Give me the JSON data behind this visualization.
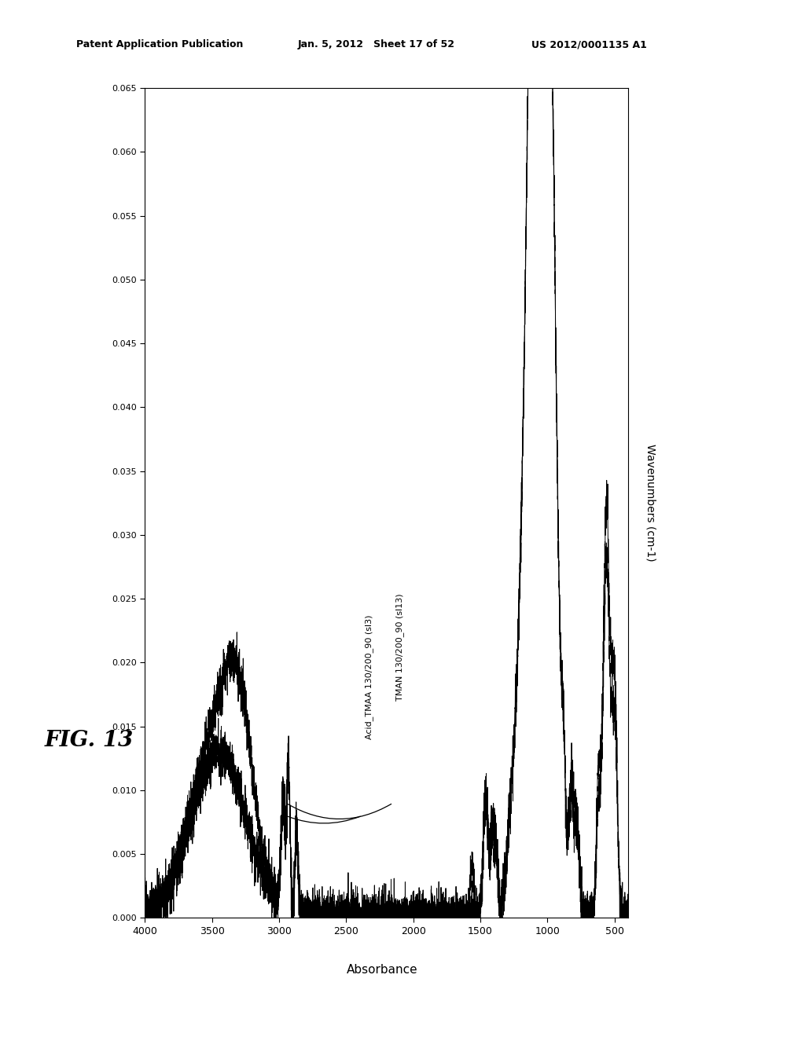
{
  "xlabel": "Absorbance",
  "ylabel": "Wavenumbers (cm-1)",
  "xlim": [
    4000,
    400
  ],
  "ylim": [
    0.0,
    0.065
  ],
  "xticks": [
    4000,
    3500,
    3000,
    2500,
    2000,
    1500,
    1000,
    500
  ],
  "yticks": [
    0.0,
    0.005,
    0.01,
    0.015,
    0.02,
    0.025,
    0.03,
    0.035,
    0.04,
    0.045,
    0.05,
    0.055,
    0.06,
    0.065
  ],
  "label1": "TMAN 130/200_90 (sl13)",
  "label2": "Acid_TMAA 130/200_90 (sl3)",
  "fig_label": "FIG. 13",
  "header_left": "Patent Application Publication",
  "header_mid": "Jan. 5, 2012   Sheet 17 of 52",
  "header_right": "US 2012/0001135 A1",
  "line_color": "#000000",
  "bg_color": "#ffffff"
}
